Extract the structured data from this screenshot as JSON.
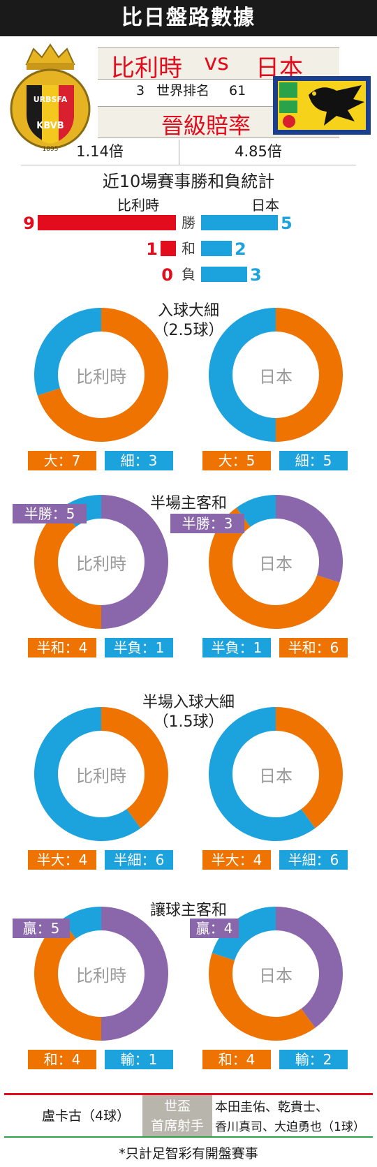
{
  "header": {
    "title": "比日盤路數據",
    "team_a": "比利時",
    "vs": "vs",
    "team_b": "日本",
    "rank_a": "3",
    "rank_label": "世界排名",
    "rank_b": "61",
    "odds_title": "晉級賠率",
    "odds_a": "1.14倍",
    "odds_b": "4.85倍",
    "crest_text_top": "URBSFA",
    "crest_text_bottom": "KBVB",
    "crest_year": "1895"
  },
  "record": {
    "title": "近10場賽事勝和負統計",
    "team_a": "比利時",
    "team_b": "日本",
    "rows": [
      {
        "label": "勝",
        "a": 9,
        "b": 5
      },
      {
        "label": "和",
        "a": 1,
        "b": 2
      },
      {
        "label": "負",
        "a": 0,
        "b": 3
      }
    ]
  },
  "colors": {
    "red": "#e20c1d",
    "blue": "#1ca2dc",
    "orange": "#ee7300",
    "purple": "#8a66ab",
    "gray_label": "#9a9a9a"
  },
  "charts": {
    "goals": {
      "title": "入球大細",
      "subtitle": "（2.5球）",
      "a_name": "比利時",
      "b_name": "日本",
      "a_boxes": [
        "大：7",
        "細：3"
      ],
      "b_boxes": [
        "大：5",
        "細：5"
      ]
    },
    "half": {
      "title": "半場主客和",
      "a_name": "比利時",
      "b_name": "日本",
      "a_tag": "半勝：5",
      "b_tag": "半勝：3",
      "a_boxes": [
        "半和：4",
        "半負：1"
      ],
      "b_boxes": [
        "半負：1",
        "半和：6"
      ]
    },
    "half_goals": {
      "title": "半場入球大細",
      "subtitle": "（1.5球）",
      "a_name": "比利時",
      "b_name": "日本",
      "a_boxes": [
        "半大：4",
        "半細：6"
      ],
      "b_boxes": [
        "半大：4",
        "半細：6"
      ]
    },
    "handicap": {
      "title": "讓球主客和",
      "a_name": "比利時",
      "b_name": "日本",
      "a_tag": "贏：5",
      "b_tag": "贏：4",
      "a_boxes": [
        "和：4",
        "輸：1"
      ],
      "b_boxes": [
        "和：4",
        "輸：2"
      ]
    }
  },
  "chart_data": [
    {
      "type": "bar",
      "title": "近10場賽事勝和負統計",
      "categories": [
        "勝",
        "和",
        "負"
      ],
      "series": [
        {
          "name": "比利時",
          "values": [
            9,
            1,
            0
          ]
        },
        {
          "name": "日本",
          "values": [
            5,
            2,
            3
          ]
        }
      ]
    },
    {
      "type": "pie",
      "title": "入球大細",
      "subtitle": "（2.5球）",
      "group": "比利時",
      "labels": [
        "大",
        "細"
      ],
      "values": [
        7,
        3
      ]
    },
    {
      "type": "pie",
      "title": "入球大細",
      "subtitle": "（2.5球）",
      "group": "日本",
      "labels": [
        "大",
        "細"
      ],
      "values": [
        5,
        5
      ]
    },
    {
      "type": "pie",
      "title": "半場主客和",
      "group": "比利時",
      "labels": [
        "半勝",
        "半和",
        "半負"
      ],
      "values": [
        5,
        4,
        1
      ]
    },
    {
      "type": "pie",
      "title": "半場主客和",
      "group": "日本",
      "labels": [
        "半勝",
        "半和",
        "半負"
      ],
      "values": [
        3,
        6,
        1
      ]
    },
    {
      "type": "pie",
      "title": "半場入球大細",
      "subtitle": "（1.5球）",
      "group": "比利時",
      "labels": [
        "半大",
        "半細"
      ],
      "values": [
        4,
        6
      ]
    },
    {
      "type": "pie",
      "title": "半場入球大細",
      "subtitle": "（1.5球）",
      "group": "日本",
      "labels": [
        "半大",
        "半細"
      ],
      "values": [
        4,
        6
      ]
    },
    {
      "type": "pie",
      "title": "讓球主客和",
      "group": "比利時",
      "labels": [
        "贏",
        "和",
        "輸"
      ],
      "values": [
        5,
        4,
        1
      ]
    },
    {
      "type": "pie",
      "title": "讓球主客和",
      "group": "日本",
      "labels": [
        "贏",
        "和",
        "輸"
      ],
      "values": [
        4,
        4,
        2
      ]
    }
  ],
  "scorers": {
    "a": "盧卡古（4球）",
    "label_line1": "世盃",
    "label_line2": "首席射手",
    "b_line1": "本田圭佑、乾貴士、",
    "b_line2": "香川真司、大迫勇也（1球）"
  },
  "footnote": "*只計足智彩有開盤賽事"
}
